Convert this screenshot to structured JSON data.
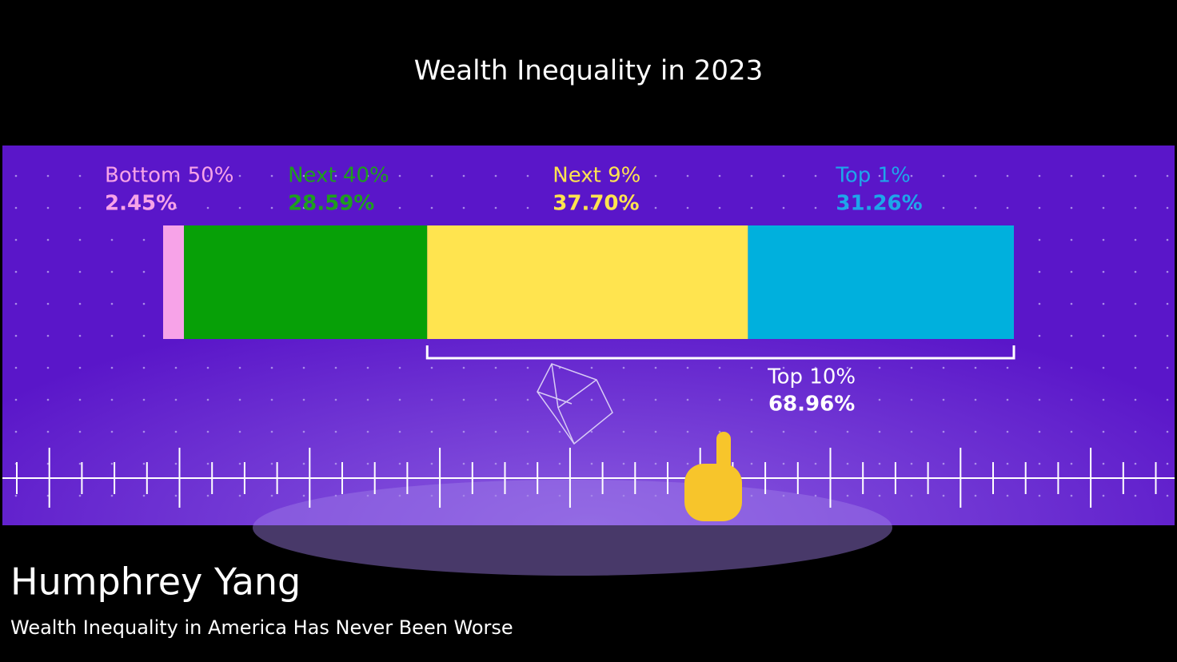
{
  "chart_data": {
    "type": "stacked-bar",
    "title": "Wealth Inequality in 2023",
    "xlim": [
      0,
      100
    ],
    "series": [
      {
        "name": "Bottom 50%",
        "color": "#f7a3e8",
        "values": [
          2.45
        ],
        "value_labels": [
          "2.45%"
        ]
      },
      {
        "name": "Next 40%",
        "color": "#07a007",
        "values": [
          28.59
        ],
        "value_labels": [
          "28.59%"
        ]
      },
      {
        "name": "Next 9%",
        "color": "#ffe44f",
        "values": [
          37.7
        ],
        "value_labels": [
          "37.70%"
        ]
      },
      {
        "name": "Top 1%",
        "color": "#00b0dd",
        "values": [
          31.26
        ],
        "value_labels": [
          "31.26%"
        ]
      }
    ],
    "annotations": [
      {
        "text": "Top 10%",
        "value": 68.96,
        "value_label": "68.96%"
      }
    ]
  },
  "footer": {
    "presenter": "Humphrey Yang",
    "video_title": "Wealth Inequality in America Has Never Been Worse"
  }
}
